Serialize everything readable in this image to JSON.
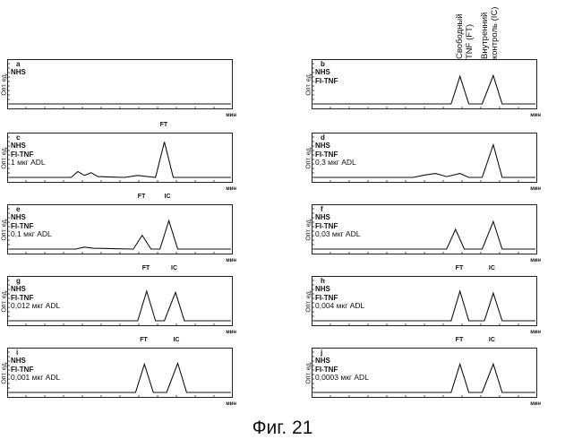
{
  "figure": {
    "caption": "Фиг. 21",
    "header_free": [
      "Свободный",
      "TNF (FT)"
    ],
    "header_ic": [
      "Внутренний",
      "контроль (IC)"
    ],
    "y_label": "Опт. ед.",
    "x_unit": "мин",
    "peak_labels": {
      "ft": "FT",
      "ic": "IC"
    }
  },
  "chart_data": [
    {
      "type": "line",
      "panel": "a",
      "lines": [
        "NHS"
      ],
      "dose": "",
      "show_peak_labels": false,
      "series": [
        {
          "points": [
            [
              0,
              0
            ],
            [
              100,
              0
            ]
          ]
        }
      ]
    },
    {
      "type": "line",
      "panel": "b",
      "lines": [
        "NHS",
        "FI-TNF"
      ],
      "dose": "",
      "show_peak_labels": false,
      "series": [
        {
          "points": [
            [
              0,
              0
            ],
            [
              62,
              0
            ],
            [
              66,
              0.7
            ],
            [
              70,
              0
            ],
            [
              76,
              0
            ],
            [
              81,
              0.72
            ],
            [
              85,
              0
            ],
            [
              100,
              0
            ]
          ]
        }
      ]
    },
    {
      "type": "line",
      "panel": "c",
      "lines": [
        "NHS",
        "FI-TNF"
      ],
      "dose": "1 мкг ADL",
      "show_peak_labels": true,
      "series": [
        {
          "points": [
            [
              0,
              0
            ],
            [
              28,
              0
            ],
            [
              31,
              0.15
            ],
            [
              34,
              0.05
            ],
            [
              37,
              0.12
            ],
            [
              40,
              0.02
            ],
            [
              52,
              0
            ],
            [
              58,
              0.05
            ],
            [
              66,
              0
            ],
            [
              70,
              0.9
            ],
            [
              74,
              0
            ],
            [
              100,
              0
            ]
          ]
        }
      ]
    },
    {
      "type": "line",
      "panel": "d",
      "lines": [
        "NHS",
        "FI-TNF"
      ],
      "dose": "0,3 мкг ADL",
      "show_peak_labels": false,
      "series": [
        {
          "points": [
            [
              0,
              0
            ],
            [
              45,
              0
            ],
            [
              50,
              0.06
            ],
            [
              55,
              0.1
            ],
            [
              60,
              0.02
            ],
            [
              66,
              0.1
            ],
            [
              70,
              0
            ],
            [
              76,
              0
            ],
            [
              81,
              0.83
            ],
            [
              85,
              0
            ],
            [
              100,
              0
            ]
          ]
        }
      ]
    },
    {
      "type": "line",
      "panel": "e",
      "lines": [
        "NHS",
        "FI-TNF"
      ],
      "dose": "0,1 мкг ADL",
      "show_peak_labels": true,
      "series": [
        {
          "points": [
            [
              0,
              0
            ],
            [
              30,
              0
            ],
            [
              34,
              0.05
            ],
            [
              38,
              0.02
            ],
            [
              56,
              0
            ],
            [
              60,
              0.35
            ],
            [
              64,
              0
            ],
            [
              68,
              0
            ],
            [
              72,
              0.72
            ],
            [
              76,
              0
            ],
            [
              100,
              0
            ]
          ]
        }
      ]
    },
    {
      "type": "line",
      "panel": "f",
      "lines": [
        "NHS",
        "FI-TNF"
      ],
      "dose": "0,03 мкг ADL",
      "show_peak_labels": false,
      "series": [
        {
          "points": [
            [
              0,
              0
            ],
            [
              60,
              0
            ],
            [
              64,
              0.5
            ],
            [
              68,
              0
            ],
            [
              76,
              0
            ],
            [
              81,
              0.7
            ],
            [
              85,
              0
            ],
            [
              100,
              0
            ]
          ]
        }
      ]
    },
    {
      "type": "line",
      "panel": "g",
      "lines": [
        "NHS",
        "FI-TNF"
      ],
      "dose": "0,012 мкг ADL",
      "show_peak_labels": true,
      "series": [
        {
          "points": [
            [
              0,
              0
            ],
            [
              58,
              0
            ],
            [
              62,
              0.75
            ],
            [
              66,
              0
            ],
            [
              70,
              0
            ],
            [
              75,
              0.72
            ],
            [
              79,
              0
            ],
            [
              100,
              0
            ]
          ]
        }
      ]
    },
    {
      "type": "line",
      "panel": "h",
      "lines": [
        "NHS",
        "FI-TNF"
      ],
      "dose": "0,004 мкг ADL",
      "show_peak_labels": true,
      "series": [
        {
          "points": [
            [
              0,
              0
            ],
            [
              62,
              0
            ],
            [
              66,
              0.75
            ],
            [
              70,
              0
            ],
            [
              77,
              0
            ],
            [
              81,
              0.7
            ],
            [
              85,
              0
            ],
            [
              100,
              0
            ]
          ]
        }
      ]
    },
    {
      "type": "line",
      "panel": "i",
      "lines": [
        "NHS",
        "FI-TNF"
      ],
      "dose": "0,001 мкг ADL",
      "show_peak_labels": true,
      "series": [
        {
          "points": [
            [
              0,
              0
            ],
            [
              57,
              0
            ],
            [
              61,
              0.72
            ],
            [
              65,
              0
            ],
            [
              71,
              0
            ],
            [
              76,
              0.74
            ],
            [
              80,
              0
            ],
            [
              100,
              0
            ]
          ]
        }
      ]
    },
    {
      "type": "line",
      "panel": "j",
      "lines": [
        "NHS",
        "FI-TNF"
      ],
      "dose": "0,0003 мкг ADL",
      "show_peak_labels": true,
      "series": [
        {
          "points": [
            [
              0,
              0
            ],
            [
              62,
              0
            ],
            [
              66,
              0.72
            ],
            [
              70,
              0
            ],
            [
              76,
              0
            ],
            [
              81,
              0.72
            ],
            [
              85,
              0
            ],
            [
              100,
              0
            ]
          ]
        }
      ]
    }
  ]
}
